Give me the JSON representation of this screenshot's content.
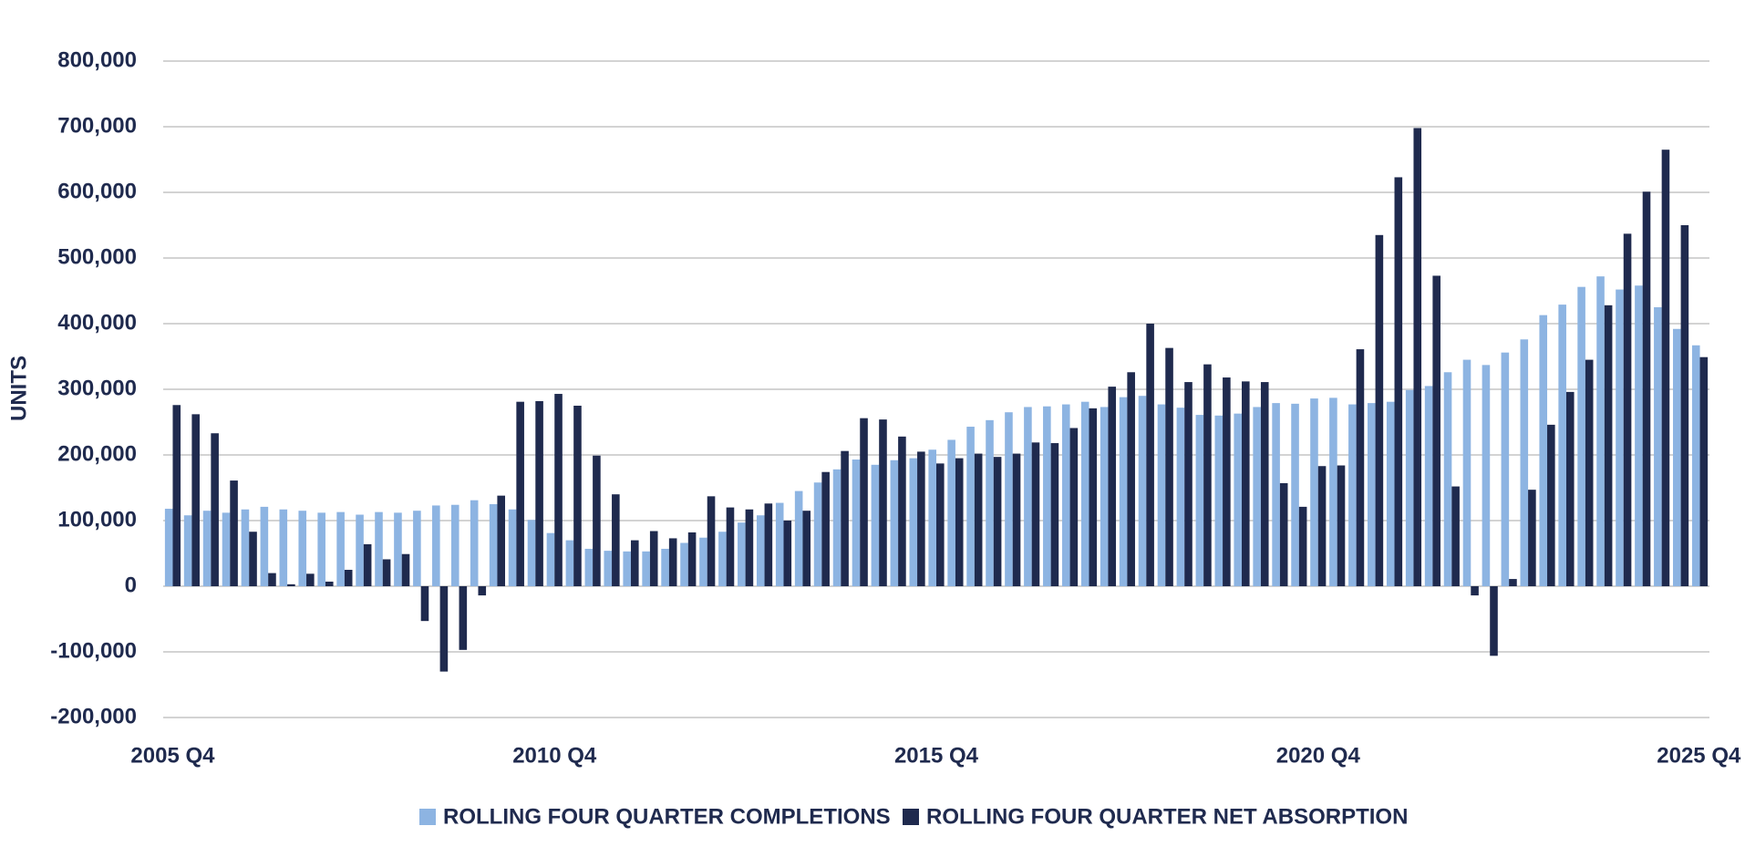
{
  "chart_data": {
    "type": "bar",
    "y_label": "UNITS",
    "categories": [
      "2005 Q4",
      null,
      null,
      null,
      null,
      null,
      null,
      null,
      null,
      null,
      null,
      null,
      null,
      null,
      null,
      null,
      null,
      null,
      null,
      null,
      "2010 Q4",
      null,
      null,
      null,
      null,
      null,
      null,
      null,
      null,
      null,
      null,
      null,
      null,
      null,
      null,
      null,
      null,
      null,
      null,
      null,
      "2015 Q4",
      null,
      null,
      null,
      null,
      null,
      null,
      null,
      null,
      null,
      null,
      null,
      null,
      null,
      null,
      null,
      null,
      null,
      null,
      null,
      "2020 Q4",
      null,
      null,
      null,
      null,
      null,
      null,
      null,
      null,
      null,
      null,
      null,
      null,
      null,
      null,
      null,
      null,
      null,
      null,
      null,
      "2025 Q4"
    ],
    "series": [
      {
        "name": "ROLLING FOUR QUARTER COMPLETIONS",
        "color": "#8db4e2",
        "values": [
          118000,
          108000,
          115000,
          112000,
          117000,
          121000,
          117000,
          115000,
          112000,
          113000,
          109000,
          113000,
          112000,
          115000,
          123000,
          124000,
          131000,
          125000,
          117000,
          101000,
          81000,
          70000,
          57000,
          54000,
          53000,
          53000,
          57000,
          66000,
          74000,
          83000,
          97000,
          108000,
          127000,
          145000,
          158000,
          178000,
          193000,
          185000,
          192000,
          195000,
          208000,
          223000,
          243000,
          253000,
          265000,
          273000,
          274000,
          277000,
          281000,
          273000,
          288000,
          290000,
          277000,
          272000,
          261000,
          260000,
          263000,
          273000,
          279000,
          278000,
          286000,
          287000,
          277000,
          279000,
          281000,
          299000,
          305000,
          326000,
          345000,
          337000,
          356000,
          376000,
          413000,
          429000,
          456000,
          472000,
          452000,
          458000,
          425000,
          392000,
          367000
        ]
      },
      {
        "name": "ROLLING FOUR QUARTER NET ABSORPTION",
        "color": "#1f2a4e",
        "values": [
          276000,
          262000,
          233000,
          161000,
          83000,
          20000,
          3000,
          19000,
          7000,
          25000,
          64000,
          41000,
          49000,
          -53000,
          -130000,
          -97000,
          -14000,
          138000,
          281000,
          282000,
          293000,
          275000,
          199000,
          140000,
          70000,
          84000,
          73000,
          82000,
          137000,
          120000,
          117000,
          126000,
          100000,
          115000,
          174000,
          206000,
          256000,
          254000,
          228000,
          205000,
          187000,
          195000,
          202000,
          197000,
          202000,
          219000,
          218000,
          241000,
          271000,
          304000,
          326000,
          400000,
          363000,
          311000,
          338000,
          318000,
          312000,
          311000,
          157000,
          121000,
          183000,
          184000,
          361000,
          535000,
          623000,
          698000,
          473000,
          152000,
          -14000,
          -106000,
          11000,
          147000,
          246000,
          296000,
          345000,
          428000,
          537000,
          601000,
          665000,
          550000,
          349000
        ]
      }
    ],
    "ylim": [
      -200000,
      800000
    ],
    "yticks": [
      {
        "value": -200000,
        "label": "-200,000"
      },
      {
        "value": -100000,
        "label": "-100,000"
      },
      0,
      {
        "value": 100000,
        "label": "100,000"
      },
      {
        "value": 200000,
        "label": "200,000"
      },
      {
        "value": 300000,
        "label": "300,000"
      },
      {
        "value": 400000,
        "label": "400,000"
      },
      {
        "value": 500000,
        "label": "500,000"
      },
      {
        "value": 600000,
        "label": "600,000"
      },
      {
        "value": 700000,
        "label": "700,000"
      },
      {
        "value": 800000,
        "label": "800,000"
      }
    ],
    "grid": true,
    "legend": "bottom"
  }
}
